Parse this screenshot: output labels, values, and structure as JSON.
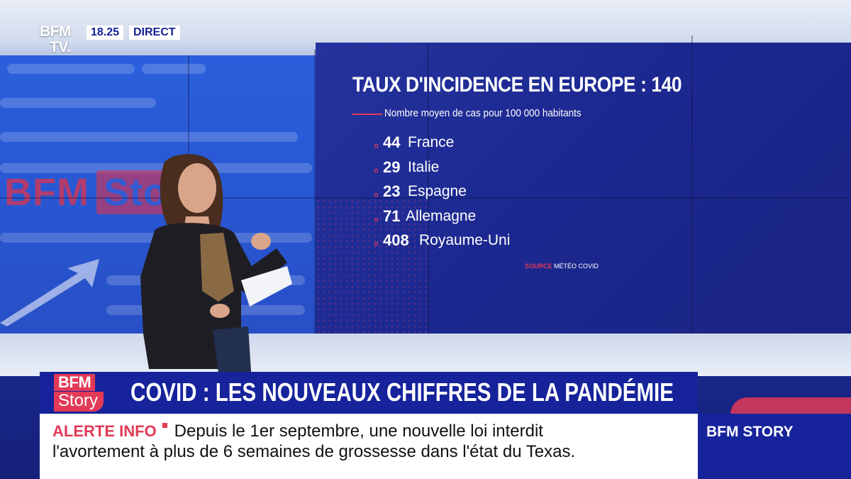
{
  "channel": {
    "logo_line1": "BFM",
    "logo_line2": "TV.",
    "time": "18.25",
    "live_label": "DIRECT"
  },
  "backdrop": {
    "ghost_logo_bfm": "BFM",
    "ghost_logo_story": "Story"
  },
  "graphic": {
    "title": "TAUX D'INCIDENCE EN EUROPE : 140",
    "subtitle": "Nombre moyen de cas pour 100 000 habitants",
    "items": [
      {
        "value": "44",
        "country": "France"
      },
      {
        "value": "29",
        "country": "Italie"
      },
      {
        "value": "23",
        "country": "Espagne"
      },
      {
        "value": "71",
        "country": "Allemagne"
      },
      {
        "value": "408",
        "country": "Royaume-Uni"
      }
    ],
    "source_label": "SOURCE",
    "source_text": "MÉTÉO COVID",
    "accent_color": "#e23a57"
  },
  "lower_third": {
    "show_logo_bfm": "BFM",
    "show_logo_story": "Story",
    "headline": "COVID : LES NOUVEAUX CHIFFRES DE LA PANDÉMIE",
    "brand_color": "#16239b"
  },
  "ticker": {
    "alert_label": "ALERTE INFO",
    "line1": "Depuis le 1er septembre, une nouvelle loi interdit",
    "line2": "l'avortement à plus de 6 semaines de grossesse dans l'état du Texas."
  },
  "side_tag": {
    "label": "BFM STORY"
  }
}
